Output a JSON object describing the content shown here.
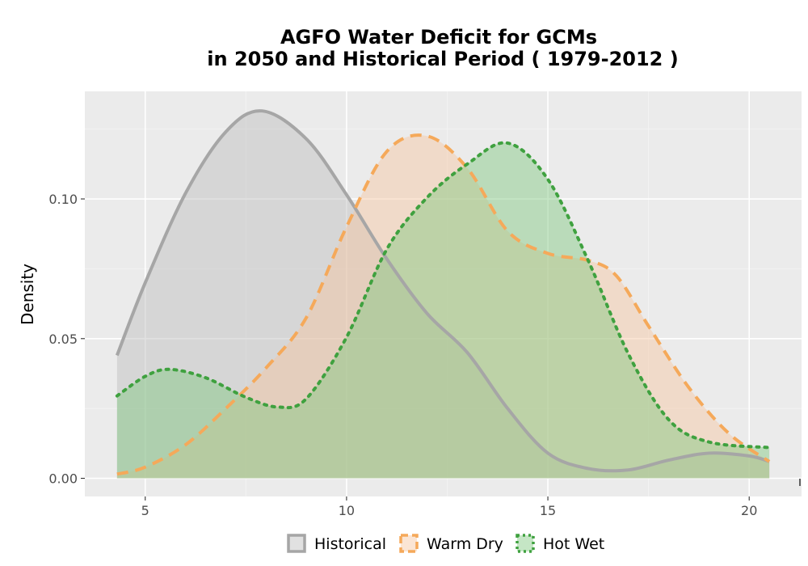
{
  "chart_data": {
    "type": "area",
    "title_line1": "AGFO  Water Deficit for GCMs",
    "title_line2": "in 2050 and Historical Period ( 1979-2012 )",
    "xlabel": "",
    "ylabel": "Density",
    "xlim": [
      3.5,
      21.3
    ],
    "ylim": [
      -0.0065,
      0.1385
    ],
    "x_ticks": [
      5,
      10,
      15,
      20
    ],
    "x_tick_labels": [
      "5",
      "10",
      "15",
      "20"
    ],
    "y_ticks": [
      0.0,
      0.05,
      0.1
    ],
    "y_tick_labels": [
      "0.00",
      "0.05",
      "0.10"
    ],
    "grid": true,
    "legend_position": "bottom",
    "series": [
      {
        "name": "Historical",
        "color": "#a6a6a6",
        "fill": "#bdbdbd",
        "fill_opacity": 0.45,
        "line_style": "solid",
        "x": [
          4.3,
          5,
          6,
          7,
          7.9,
          9,
          10,
          11,
          12,
          13,
          14,
          15,
          16,
          17,
          18,
          19,
          20,
          20.5
        ],
        "y": [
          0.044,
          0.07,
          0.102,
          0.124,
          0.1315,
          0.1215,
          0.1015,
          0.0785,
          0.059,
          0.045,
          0.025,
          0.009,
          0.0035,
          0.003,
          0.0065,
          0.009,
          0.008,
          0.006
        ]
      },
      {
        "name": "Warm Dry",
        "color": "#f5a95a",
        "fill": "#f6c69f",
        "fill_opacity": 0.45,
        "line_style": "dashed",
        "x": [
          4.3,
          5,
          6,
          7,
          8,
          9,
          10,
          11,
          12,
          13,
          14,
          15,
          16,
          16.7,
          17.5,
          18.5,
          19.5,
          20.5
        ],
        "y": [
          0.0015,
          0.004,
          0.012,
          0.025,
          0.0395,
          0.0575,
          0.09,
          0.117,
          0.1225,
          0.111,
          0.0885,
          0.0805,
          0.078,
          0.0725,
          0.0545,
          0.0325,
          0.016,
          0.006
        ]
      },
      {
        "name": "Hot Wet",
        "color": "#3fa13f",
        "fill": "#7fc77f",
        "fill_opacity": 0.45,
        "line_style": "dotted",
        "x": [
          4.3,
          5,
          5.6,
          6.5,
          7.5,
          8.3,
          9,
          10,
          11,
          12,
          13,
          14,
          15,
          16,
          17,
          18,
          19,
          20.5
        ],
        "y": [
          0.0295,
          0.0365,
          0.039,
          0.036,
          0.029,
          0.0255,
          0.0285,
          0.0505,
          0.082,
          0.1005,
          0.1125,
          0.12,
          0.107,
          0.078,
          0.0445,
          0.021,
          0.013,
          0.011
        ]
      }
    ]
  }
}
